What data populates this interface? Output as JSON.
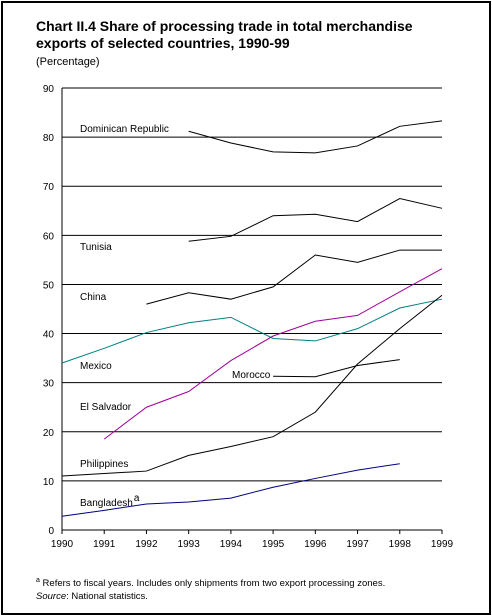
{
  "chart_data": {
    "type": "line",
    "title": "Chart II.4 Share of processing trade in total merchandise exports of selected countries, 1990-99",
    "subtitle": "(Percentage)",
    "categories": [
      "1990",
      "1991",
      "1992",
      "1993",
      "1994",
      "1995",
      "1996",
      "1997",
      "1998",
      "1999"
    ],
    "ylim": [
      0,
      90
    ],
    "yticks": [
      0,
      10,
      20,
      30,
      40,
      50,
      60,
      70,
      80,
      90
    ],
    "grid": true,
    "series": [
      {
        "name": "Dominican Republic",
        "color": "#000000",
        "values": [
          null,
          null,
          null,
          81.2,
          78.8,
          77,
          76.8,
          78.2,
          82.2,
          83.3
        ]
      },
      {
        "name": "Tunisia",
        "color": "#000000",
        "values": [
          null,
          null,
          null,
          58.8,
          59.8,
          64,
          64.3,
          62.8,
          67.5,
          65.5
        ]
      },
      {
        "name": "China",
        "color": "#000000",
        "values": [
          null,
          null,
          46,
          48.3,
          47,
          49.5,
          56,
          54.5,
          57,
          57
        ]
      },
      {
        "name": "Mexico",
        "color": "#008080",
        "values": [
          34,
          37,
          40.2,
          42.2,
          43.3,
          39,
          38.5,
          41,
          45.2,
          47
        ]
      },
      {
        "name": "Morocco",
        "color": "#000000",
        "values": [
          null,
          null,
          null,
          null,
          null,
          31.3,
          31.2,
          33.5,
          34.7,
          null
        ]
      },
      {
        "name": "El Salvador",
        "color": "#a0009a",
        "values": [
          null,
          18.5,
          25,
          28.2,
          34.5,
          39.5,
          42.5,
          43.7,
          48.5,
          53.2
        ]
      },
      {
        "name": "Philippines",
        "color": "#000000",
        "values": [
          11,
          11.5,
          12,
          15.2,
          17,
          19,
          24,
          33.8,
          41,
          47.8
        ]
      },
      {
        "name": "Bangladesh",
        "color": "#000080",
        "values": [
          2.8,
          4,
          5.3,
          5.7,
          6.5,
          8.7,
          10.5,
          12.2,
          13.5,
          null
        ]
      }
    ],
    "footnote_marker": "a",
    "footnote": "Refers to fiscal years. Includes only shipments from two export processing zones.",
    "source_label": "Source",
    "source_text": ": National statistics."
  }
}
